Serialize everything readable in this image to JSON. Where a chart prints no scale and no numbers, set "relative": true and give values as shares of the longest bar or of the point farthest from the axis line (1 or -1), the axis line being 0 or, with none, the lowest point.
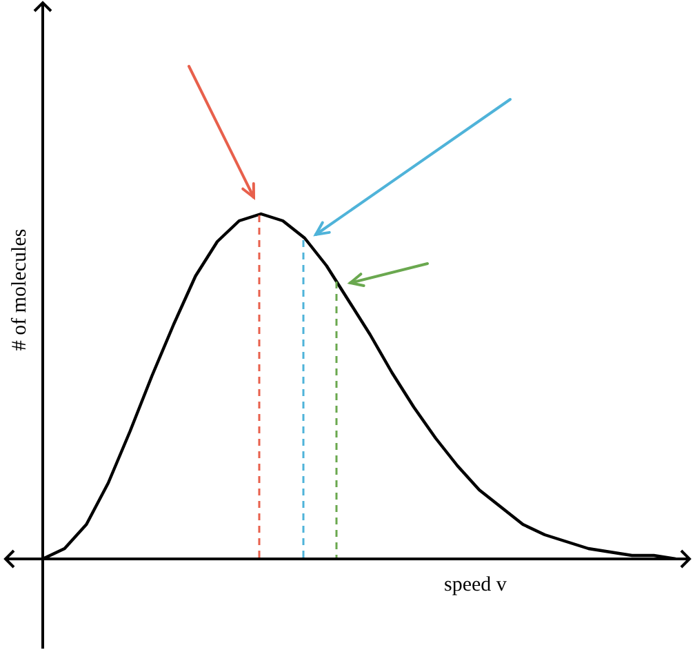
{
  "chart_data": {
    "type": "line",
    "xlabel": "speed v",
    "ylabel": "# of molecules",
    "relative": true,
    "tick_labels": false,
    "categories": [
      null,
      null,
      null,
      null,
      null,
      null,
      null,
      null,
      null,
      null,
      null,
      null,
      null,
      null,
      null,
      null,
      null,
      null,
      null,
      null,
      null,
      null,
      null,
      null,
      null,
      null,
      null,
      null,
      null,
      null
    ],
    "values": [
      0,
      0.03,
      0.1,
      0.22,
      0.37,
      0.53,
      0.68,
      0.82,
      0.92,
      0.98,
      1,
      0.98,
      0.93,
      0.85,
      0.75,
      0.65,
      0.54,
      0.44,
      0.35,
      0.27,
      0.2,
      0.15,
      0.1,
      0.07,
      0.05,
      0.03,
      0.02,
      0.01,
      0.01,
      0
    ],
    "color": "#000000"
  }
}
